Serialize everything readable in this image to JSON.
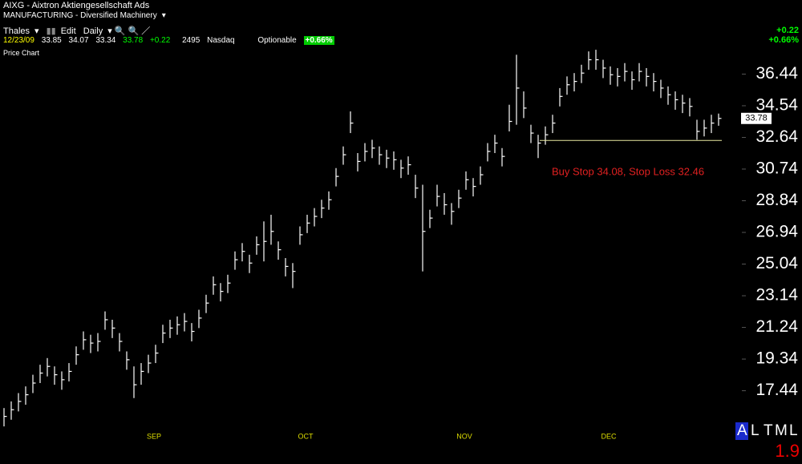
{
  "header": {
    "symbol_line": "AIXG - Aixtron Aktiengesellschaft Ads",
    "industry": "MANUFACTURING - Diversified Machinery",
    "toolbar": [
      "Thales",
      "Edit",
      "Daily"
    ],
    "date": "12/23/09",
    "open": "33.85",
    "high": "34.07",
    "low": "33.34",
    "last": "33.78",
    "change": "+0.22",
    "volume": "2495",
    "exchange": "Nasdaq",
    "optionable": "Optionable",
    "change_pct": "+0.66%",
    "pane_label": "Price Chart"
  },
  "footer": {
    "modes": [
      "A",
      "L",
      "T",
      "M",
      "L"
    ]
  },
  "chart_data": {
    "type": "hlc",
    "annotation": "Buy Stop 34.08, Stop Loss 32.46",
    "stop_loss_line": 32.46,
    "categories": [
      null,
      null,
      null,
      null,
      null,
      null,
      null,
      null,
      null,
      null,
      null,
      null,
      null,
      null,
      null,
      null,
      null,
      null,
      null,
      null,
      "SEP",
      null,
      null,
      null,
      null,
      null,
      null,
      null,
      null,
      null,
      null,
      null,
      null,
      null,
      null,
      null,
      null,
      null,
      null,
      null,
      null,
      "OCT",
      null,
      null,
      null,
      null,
      null,
      null,
      null,
      null,
      null,
      null,
      null,
      null,
      null,
      null,
      null,
      null,
      null,
      null,
      null,
      null,
      null,
      "NOV",
      null,
      null,
      null,
      null,
      null,
      null,
      null,
      null,
      null,
      null,
      null,
      null,
      null,
      null,
      null,
      null,
      null,
      null,
      null,
      "DEC",
      null,
      null,
      null,
      null,
      null,
      null,
      null,
      null,
      null,
      null,
      null,
      null,
      null,
      null,
      null,
      null
    ],
    "high": [
      16.4,
      16.8,
      17.3,
      17.7,
      18.4,
      19.0,
      19.4,
      18.9,
      18.6,
      19.1,
      20.1,
      21.0,
      20.8,
      20.9,
      22.2,
      21.7,
      20.9,
      19.8,
      18.9,
      19.1,
      19.6,
      20.2,
      21.4,
      21.7,
      21.9,
      22.1,
      21.5,
      22.3,
      23.2,
      24.3,
      23.9,
      24.4,
      25.8,
      26.3,
      25.6,
      26.7,
      27.6,
      28.0,
      26.4,
      25.4,
      25.1,
      27.3,
      28.0,
      28.4,
      28.9,
      29.4,
      30.8,
      32.1,
      34.2,
      31.7,
      32.3,
      32.5,
      32.1,
      31.9,
      31.8,
      31.3,
      31.5,
      30.4,
      29.8,
      28.3,
      29.8,
      29.3,
      28.7,
      29.5,
      30.6,
      30.2,
      30.9,
      32.3,
      32.8,
      32.0,
      34.6,
      37.6,
      35.4,
      33.4,
      32.8,
      33.3,
      34.0,
      35.6,
      36.3,
      36.5,
      37.0,
      37.8,
      37.9,
      37.3,
      36.9,
      36.8,
      37.1,
      36.6,
      37.1,
      36.8,
      36.5,
      36.1,
      35.7,
      35.4,
      35.2,
      35.0,
      33.7,
      33.7,
      34.0,
      34.07
    ],
    "low": [
      15.3,
      15.7,
      16.2,
      16.6,
      17.3,
      17.9,
      18.3,
      17.8,
      17.5,
      18.0,
      19.0,
      19.9,
      19.7,
      19.8,
      21.1,
      20.6,
      19.8,
      18.7,
      17.0,
      17.8,
      18.5,
      19.1,
      20.3,
      20.6,
      20.8,
      21.0,
      20.4,
      21.2,
      22.1,
      23.2,
      22.8,
      23.3,
      24.7,
      25.2,
      24.5,
      25.6,
      25.2,
      26.2,
      25.3,
      24.3,
      23.6,
      26.2,
      26.9,
      27.3,
      27.8,
      28.3,
      29.7,
      31.0,
      32.9,
      30.6,
      31.2,
      31.4,
      31.0,
      30.8,
      30.7,
      30.2,
      30.4,
      29.0,
      24.6,
      27.2,
      28.5,
      28.0,
      27.4,
      28.4,
      29.5,
      29.1,
      29.8,
      31.2,
      31.7,
      30.9,
      33.0,
      33.4,
      33.8,
      32.3,
      31.4,
      32.2,
      32.9,
      34.5,
      35.2,
      35.4,
      35.9,
      36.7,
      36.7,
      36.2,
      35.8,
      35.7,
      36.0,
      35.5,
      36.0,
      35.7,
      35.4,
      35.0,
      34.6,
      34.3,
      34.1,
      33.9,
      32.5,
      32.7,
      32.9,
      33.34
    ],
    "close": [
      15.9,
      16.3,
      16.8,
      17.2,
      17.9,
      18.5,
      18.9,
      18.4,
      18.1,
      18.6,
      19.6,
      20.5,
      20.3,
      20.4,
      21.7,
      21.2,
      20.4,
      19.3,
      17.8,
      18.6,
      19.1,
      19.7,
      20.9,
      21.2,
      21.4,
      21.6,
      21.0,
      21.8,
      22.7,
      23.8,
      23.4,
      23.9,
      25.3,
      25.8,
      25.1,
      26.2,
      26.4,
      27.0,
      25.9,
      24.9,
      24.6,
      26.8,
      27.5,
      27.9,
      28.4,
      28.9,
      30.3,
      31.6,
      33.5,
      31.2,
      31.8,
      32.0,
      31.6,
      31.4,
      31.3,
      30.8,
      31.0,
      29.6,
      27.0,
      27.8,
      29.1,
      28.6,
      28.2,
      29.0,
      30.1,
      29.7,
      30.4,
      31.8,
      32.3,
      31.5,
      33.6,
      35.6,
      34.4,
      32.9,
      32.3,
      32.8,
      33.5,
      35.1,
      35.8,
      36.0,
      36.5,
      37.3,
      37.3,
      36.8,
      36.4,
      36.3,
      36.6,
      36.1,
      36.6,
      36.3,
      36.0,
      35.6,
      35.2,
      34.9,
      34.7,
      34.5,
      33.0,
      33.2,
      33.5,
      33.78
    ],
    "color": "#ffffff",
    "ylim": [
      15.4,
      38.0
    ],
    "yticks": [
      17.44,
      19.34,
      21.24,
      23.14,
      25.04,
      26.94,
      28.84,
      30.74,
      32.64,
      34.54,
      36.44
    ],
    "ytick_step": 1.9
  }
}
